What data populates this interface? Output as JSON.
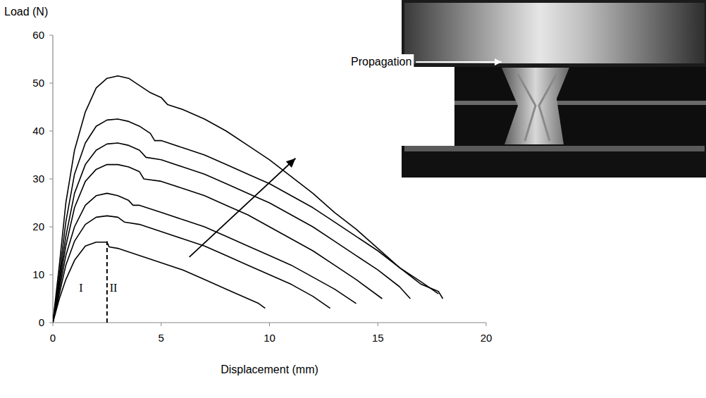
{
  "chart_data": {
    "type": "line",
    "x_label": "Displacement (mm)",
    "y_label": "Load (N)",
    "color": "#000000",
    "xlim": [
      0,
      20
    ],
    "ylim": [
      0,
      60
    ],
    "xticks": [
      0,
      5,
      10,
      15,
      20
    ],
    "yticks": [
      0,
      10,
      20,
      30,
      40,
      50,
      60
    ],
    "grid": false,
    "series": [
      {
        "x": [
          0,
          0.3,
          0.6,
          1,
          1.5,
          2,
          2.5,
          2.6,
          3,
          4,
          5,
          6,
          7,
          8,
          9,
          9.5,
          9.8
        ],
        "values": [
          0,
          5,
          9,
          13,
          16,
          16.8,
          16.8,
          15.8,
          15.5,
          14,
          12.5,
          11,
          9,
          7,
          5,
          4,
          3
        ]
      },
      {
        "x": [
          0,
          0.3,
          0.6,
          1,
          1.5,
          2,
          2.5,
          3,
          3.3,
          4,
          5,
          6,
          7,
          8,
          9,
          10,
          11,
          12,
          12.8
        ],
        "values": [
          0,
          6,
          12,
          17,
          20.5,
          22,
          22.3,
          22,
          21,
          20.5,
          19,
          17.5,
          16,
          14,
          12,
          10,
          8,
          5.5,
          3
        ]
      },
      {
        "x": [
          0,
          0.3,
          0.6,
          1,
          1.5,
          2,
          2.5,
          3,
          3.5,
          3.7,
          4,
          5,
          6,
          7,
          8,
          9,
          10,
          11,
          12,
          13,
          14
        ],
        "values": [
          0,
          7,
          14,
          20,
          24.5,
          26.5,
          27,
          26.5,
          25.5,
          24.5,
          24.5,
          23,
          21.5,
          20,
          18,
          16,
          14,
          12,
          9.5,
          7,
          4
        ]
      },
      {
        "x": [
          0,
          0.3,
          0.6,
          1,
          1.5,
          2,
          2.5,
          3,
          3.5,
          4,
          4.2,
          5,
          6,
          7,
          8,
          9,
          10,
          11,
          12,
          13,
          14,
          15.2
        ],
        "values": [
          0,
          8,
          16,
          24,
          29.5,
          32,
          33,
          33,
          32.5,
          31.5,
          30,
          29.5,
          28,
          26.5,
          24.5,
          22.5,
          20,
          17.5,
          15,
          12,
          9,
          5
        ]
      },
      {
        "x": [
          0,
          0.3,
          0.6,
          1,
          1.5,
          2,
          2.5,
          3,
          3.5,
          4,
          4.3,
          5,
          6,
          7,
          8,
          9,
          10,
          11,
          12,
          13,
          14,
          15,
          16,
          16.5
        ],
        "values": [
          0,
          9,
          18,
          27,
          33,
          36,
          37.3,
          37.5,
          37,
          36,
          34.5,
          34,
          32.5,
          31,
          29,
          27,
          25,
          22.5,
          20,
          17,
          14,
          11,
          7.5,
          5
        ]
      },
      {
        "x": [
          0,
          0.3,
          0.6,
          1,
          1.5,
          2,
          2.5,
          3,
          3.5,
          4,
          4.5,
          4.7,
          5,
          6,
          7,
          8,
          9,
          10,
          11,
          12,
          13,
          14,
          15,
          16,
          17,
          17.8
        ],
        "values": [
          0,
          10,
          21,
          31,
          37.5,
          41,
          42.3,
          42.5,
          42,
          41,
          39.5,
          38,
          38,
          36.5,
          35,
          33,
          31,
          29,
          26.5,
          24,
          21,
          18,
          15,
          11.5,
          8.5,
          6
        ]
      },
      {
        "x": [
          0,
          0.3,
          0.6,
          1,
          1.5,
          2,
          2.5,
          3,
          3.5,
          4,
          4.5,
          5,
          5.3,
          6,
          7,
          8,
          9,
          10,
          11,
          12,
          13,
          14,
          15,
          16,
          17,
          17.8,
          18
        ],
        "values": [
          0,
          12,
          25,
          36,
          44,
          49,
          51,
          51.5,
          51,
          49.5,
          48,
          47,
          45.5,
          44.5,
          42.5,
          40,
          37,
          34,
          30.5,
          27,
          23,
          19.5,
          15.5,
          11.5,
          8,
          6.5,
          5
        ]
      }
    ],
    "annotations": [
      {
        "text": "I",
        "x": 1.3,
        "y": 6.5
      },
      {
        "text": "II",
        "x": 2.8,
        "y": 6.5
      }
    ],
    "reference_lines": [
      {
        "x": 2.5,
        "ylim": [
          0,
          17
        ],
        "line_style": "dashed"
      }
    ],
    "arrow": {
      "x": [
        6.3,
        11.2
      ],
      "y": [
        13.7,
        34.3
      ]
    },
    "inset": {
      "label": "Propagation"
    }
  }
}
